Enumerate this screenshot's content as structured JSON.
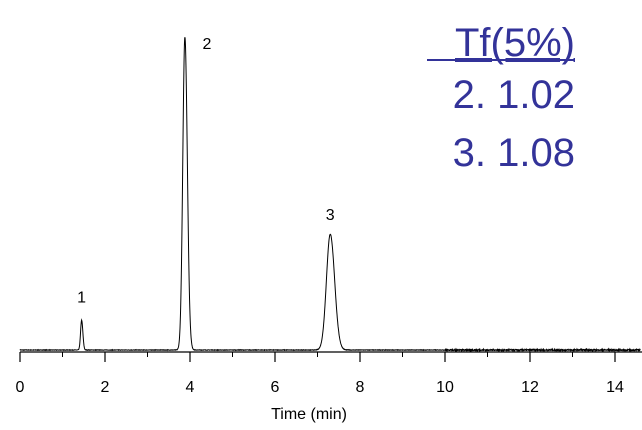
{
  "chart_data": {
    "type": "line",
    "title": "",
    "xlabel": "Time (min)",
    "ylabel": "",
    "xlim": [
      0,
      14.6
    ],
    "x_ticks": [
      "0",
      "2",
      "4",
      "6",
      "8",
      "10",
      "12",
      "14"
    ],
    "grid": false,
    "series": [
      {
        "peaks": [
          {
            "label": "1",
            "x": 1.45,
            "height": 0.095,
            "width": 0.025
          },
          {
            "label": "2",
            "x": 3.88,
            "height": 1.0,
            "width": 0.05
          },
          {
            "label": "3",
            "x": 7.3,
            "height": 0.37,
            "width": 0.09
          }
        ],
        "baseline": 0.0
      }
    ],
    "annotations": {
      "tf_header": "Tf(5%)",
      "tf_values": [
        "2. 1.02",
        "3. 1.08"
      ]
    }
  }
}
